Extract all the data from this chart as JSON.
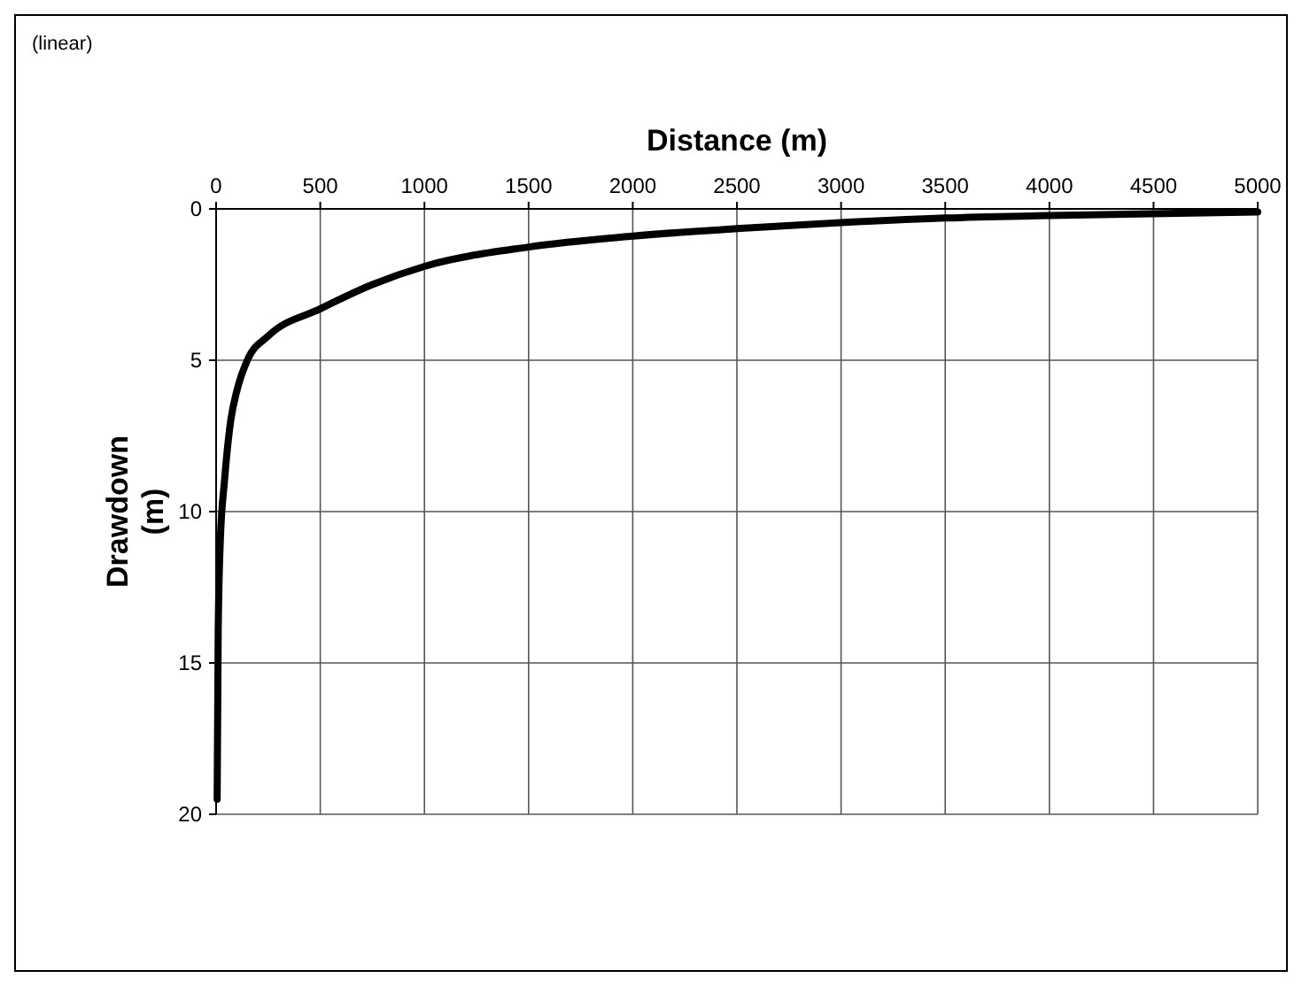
{
  "chart_data": {
    "type": "line",
    "xlabel": "Distance (m)",
    "ylabel": "Drawdown (m)",
    "annotations": [
      "(linear)"
    ],
    "x": [
      5,
      10,
      20,
      40,
      70,
      100,
      150,
      250,
      500,
      750,
      1000,
      1500,
      2000,
      2500,
      3000,
      3500,
      4000,
      5000
    ],
    "series": [
      {
        "color": "#000000",
        "values": [
          19.5,
          14,
          11,
          9,
          7,
          6,
          5,
          4.2,
          3.3,
          2.5,
          1.9,
          1.26,
          0.9,
          0.65,
          0.45,
          0.3,
          0.22,
          0.1
        ]
      }
    ],
    "xlim": [
      0,
      5000
    ],
    "xticks": [
      0,
      500,
      1000,
      1500,
      2000,
      2500,
      3000,
      3500,
      4000,
      4500,
      5000
    ],
    "ylim": [
      20,
      0
    ],
    "yticks": [
      0,
      5,
      10,
      15,
      20
    ],
    "grid": true,
    "marker": "none",
    "line_style": "solid"
  }
}
